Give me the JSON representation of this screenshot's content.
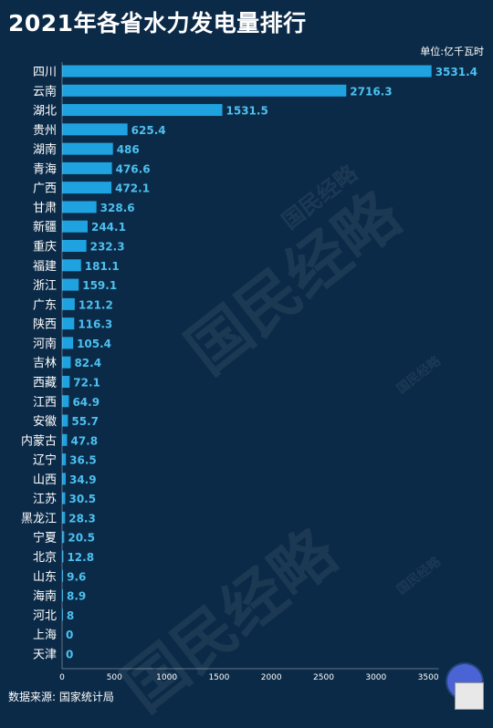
{
  "header": {
    "title": "2021年各省水力发电量排行",
    "unit": "单位:亿千瓦时"
  },
  "footer": {
    "source": "数据来源: 国家统计局"
  },
  "watermark": {
    "text": "国民经略"
  },
  "colors": {
    "background": "#0b2a47",
    "bar": "#1fa3e0",
    "value_label": "#4cc0f0",
    "grid": "#ffffff"
  },
  "chart_data": {
    "type": "bar",
    "orientation": "horizontal",
    "title": "2021年各省水力发电量排行",
    "xlabel": "",
    "ylabel": "",
    "unit": "单位:亿千瓦时",
    "xlim": [
      0,
      3600
    ],
    "xticks": [
      0,
      500,
      1000,
      1500,
      2000,
      2500,
      3000,
      3500
    ],
    "grid": false,
    "categories": [
      "四川",
      "云南",
      "湖北",
      "贵州",
      "湖南",
      "青海",
      "广西",
      "甘肃",
      "新疆",
      "重庆",
      "福建",
      "浙江",
      "广东",
      "陕西",
      "河南",
      "吉林",
      "西藏",
      "江西",
      "安徽",
      "内蒙古",
      "辽宁",
      "山西",
      "江苏",
      "黑龙江",
      "宁夏",
      "北京",
      "山东",
      "海南",
      "河北",
      "上海",
      "天津"
    ],
    "values": [
      3531.4,
      2716.3,
      1531.5,
      625.4,
      486,
      476.6,
      472.1,
      328.6,
      244.1,
      232.3,
      181.1,
      159.1,
      121.2,
      116.3,
      105.4,
      82.4,
      72.1,
      64.9,
      55.7,
      47.8,
      36.5,
      34.9,
      30.5,
      28.3,
      20.5,
      12.8,
      9.6,
      8.9,
      8,
      0,
      0
    ],
    "value_labels": [
      "3531.4",
      "2716.3",
      "1531.5",
      "625.4",
      "486",
      "476.6",
      "472.1",
      "328.6",
      "244.1",
      "232.3",
      "181.1",
      "159.1",
      "121.2",
      "116.3",
      "105.4",
      "82.4",
      "72.1",
      "64.9",
      "55.7",
      "47.8",
      "36.5",
      "34.9",
      "30.5",
      "28.3",
      "20.5",
      "12.8",
      "9.6",
      "8.9",
      "8",
      "0",
      "0"
    ]
  }
}
